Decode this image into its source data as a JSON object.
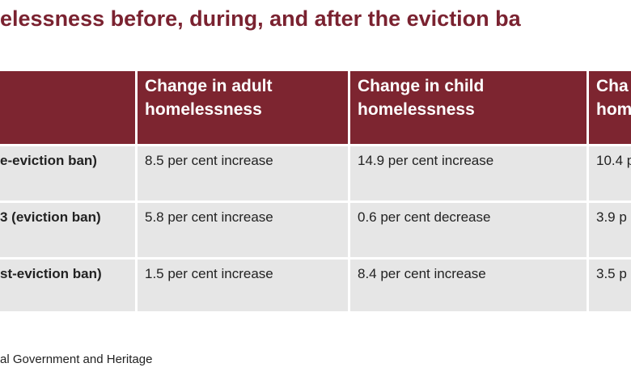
{
  "title": "elessness before, during, and after the eviction ba",
  "table": {
    "header": [
      "",
      "Change in adult homelessness",
      "Change in child homelessness",
      [
        "Cha",
        "hom"
      ]
    ],
    "rows": [
      [
        "e-eviction ban)",
        "8.5 per cent increase",
        "14.9 per cent increase",
        "10.4 p"
      ],
      [
        "3 (eviction ban)",
        "5.8 per cent increase",
        "0.6 per cent decrease",
        "3.9 p"
      ],
      [
        "st-eviction ban)",
        "1.5 per cent increase",
        "8.4 per cent increase",
        "3.5 p"
      ]
    ]
  },
  "source": "al Government and Heritage"
}
